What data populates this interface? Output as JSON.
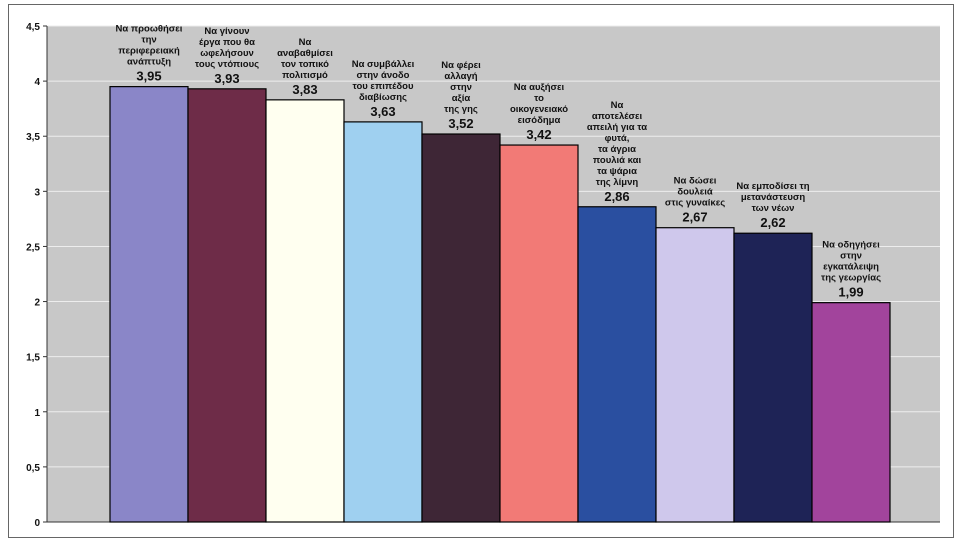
{
  "chart_data": {
    "type": "bar",
    "title": "",
    "xlabel": "",
    "ylabel": "",
    "ylim": [
      0,
      4.5
    ],
    "yticks": [
      "0",
      "0,5",
      "1",
      "1,5",
      "2",
      "2,5",
      "3",
      "3,5",
      "4",
      "4,5"
    ],
    "grid": true,
    "legend": "none",
    "categories": [
      [
        "Να προωθήσει",
        "την",
        "περιφερειακή",
        "ανάπτυξη"
      ],
      [
        "Να γίνουν",
        "έργα που θα",
        "ωφελήσουν",
        "τους ντόπιους"
      ],
      [
        "Να",
        "αναβαθμίσει",
        "τον τοπικό",
        "πολιτισμό"
      ],
      [
        "Να συμβάλλει",
        "στην άνοδο",
        "του επιπέδου",
        "διαβίωσης"
      ],
      [
        "Να φέρει",
        "αλλαγή",
        "στην",
        "αξία",
        "της γης"
      ],
      [
        "Να αυξήσει",
        "το",
        "οικογενειακό",
        "εισόδημα"
      ],
      [
        "Να",
        "αποτελέσει",
        "απειλή για τα",
        "φυτά,",
        "τα άγρια",
        "πουλιά και",
        "τα ψάρια",
        "της λίμνη"
      ],
      [
        "Να δώσει",
        "δουλειά",
        "στις γυναίκες"
      ],
      [
        "Να εμποδίσει τη",
        "μετανάστευση",
        "των νέων"
      ],
      [
        "Να οδηγήσει",
        "στην",
        "εγκατάλειψη",
        "της γεωργίας"
      ]
    ],
    "values": [
      3.95,
      3.93,
      3.83,
      3.63,
      3.52,
      3.42,
      2.86,
      2.67,
      2.62,
      1.99
    ],
    "value_labels": [
      "3,95",
      "3,93",
      "3,83",
      "3,63",
      "3,52",
      "3,42",
      "2,86",
      "2,67",
      "2,62",
      "1,99"
    ],
    "colors": [
      "#8a86c8",
      "#6e2c48",
      "#fffff0",
      "#9fd0f0",
      "#3e2636",
      "#f27a76",
      "#2a4fa0",
      "#cfc8ec",
      "#1e2356",
      "#a2449c"
    ],
    "plot_background": "#c8c8c8",
    "grid_color": "#ededed"
  }
}
